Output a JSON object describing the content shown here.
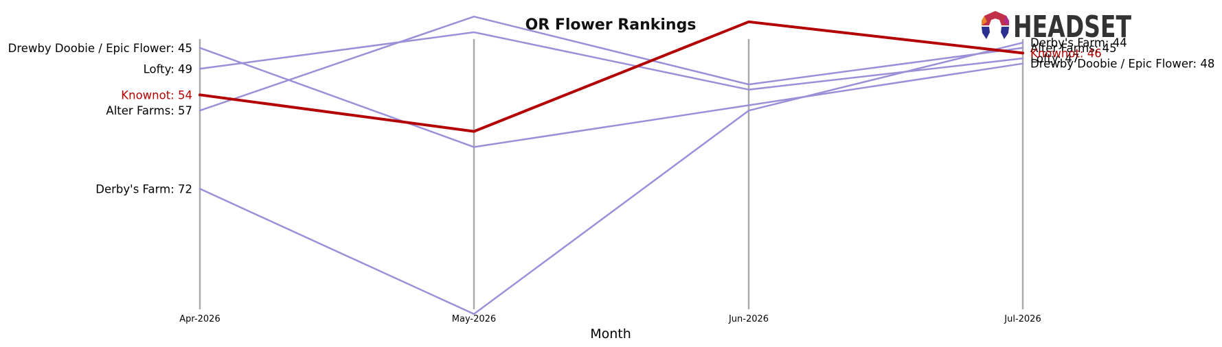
{
  "chart_data": {
    "type": "line",
    "title": "OR Flower Rankings",
    "xlabel": "Month",
    "ylabel": "",
    "x": [
      "Apr-2026",
      "May-2026",
      "Jun-2026",
      "Jul-2026"
    ],
    "ylim": [
      42,
      101
    ],
    "y_inverted": true,
    "grid": false,
    "highlight_color": "#b30000",
    "series_color": "#9b8fd8",
    "axis_line_color": "#aaaaaa",
    "series": [
      {
        "name": "Drewby Doobie / Epic Flower",
        "values": [
          45,
          64,
          56,
          48
        ],
        "highlight": false
      },
      {
        "name": "Lofty",
        "values": [
          49,
          42,
          53,
          47
        ],
        "highlight": false
      },
      {
        "name": "Alter Farms",
        "values": [
          57,
          39,
          52,
          45
        ],
        "highlight": false
      },
      {
        "name": "Derby's Farm",
        "values": [
          72,
          96,
          57,
          44
        ],
        "highlight": false
      },
      {
        "name": "Knownot",
        "values": [
          54,
          61,
          40,
          46
        ],
        "highlight": true
      }
    ]
  },
  "branding": {
    "logo_text": "HEADSET"
  }
}
